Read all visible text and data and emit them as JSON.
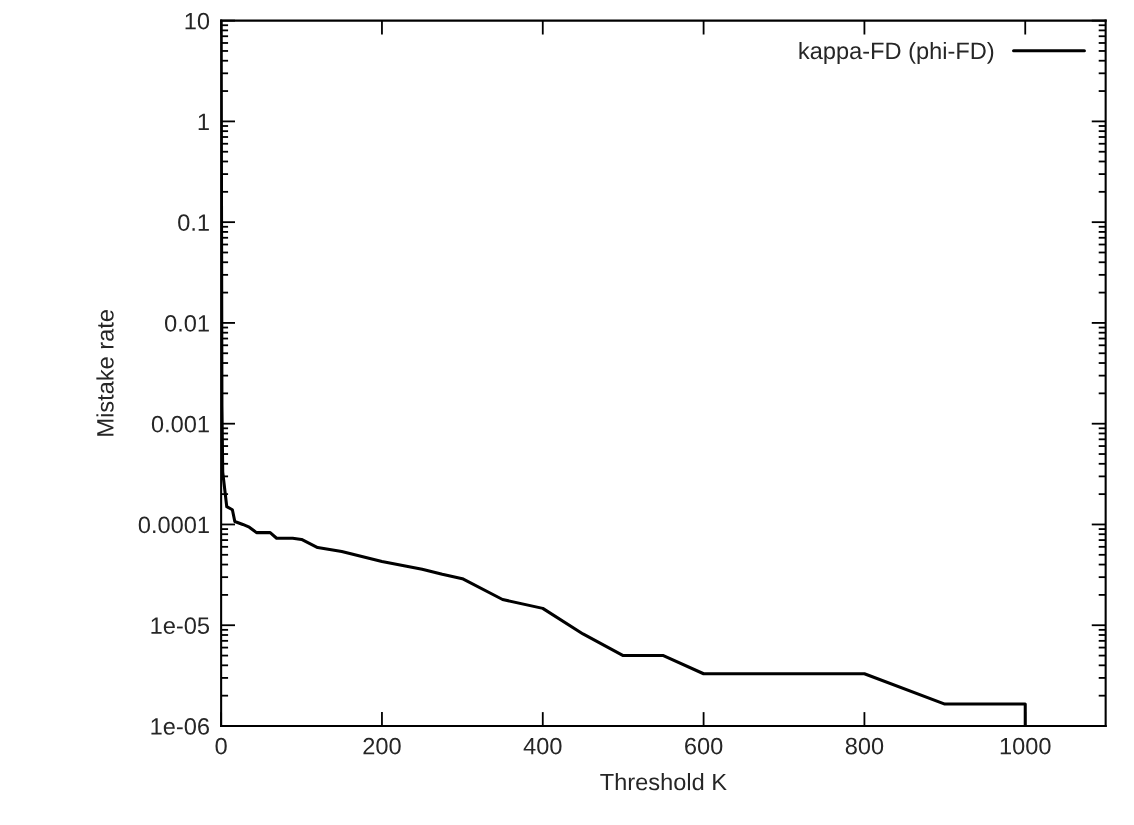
{
  "chart_data": {
    "type": "line",
    "xlabel": "Threshold K",
    "ylabel": "Mistake rate",
    "log": "y",
    "xlim": [
      0,
      1100
    ],
    "xticks": [
      0,
      200,
      400,
      600,
      800,
      1000
    ],
    "ylim": [
      1e-06,
      10
    ],
    "yticks": [
      10,
      1,
      0.1,
      0.01,
      0.001,
      0.0001,
      {
        "value": 1e-05,
        "label": "1e-05"
      },
      {
        "value": 1e-06,
        "label": "1e-06"
      }
    ],
    "legend": "top right",
    "grid": false,
    "marker": "none",
    "line_style": "solid",
    "series": [
      {
        "name": "kappa-FD (phi-FD)",
        "color": "#000000",
        "x": [
          0,
          1,
          2,
          7,
          14,
          17,
          27,
          35,
          44,
          61,
          69,
          89,
          100,
          120,
          150,
          200,
          250,
          275,
          300,
          350,
          400,
          450,
          500,
          550,
          600,
          800,
          900,
          1000,
          1000
        ],
        "values": [
          10,
          0.0015,
          0.00033,
          0.00015,
          0.00014,
          0.000107,
          0.0001,
          9.4e-05,
          8.3e-05,
          8.3e-05,
          7.3e-05,
          7.3e-05,
          7.1e-05,
          5.9e-05,
          5.4e-05,
          4.3e-05,
          3.6e-05,
          3.2e-05,
          2.9e-05,
          1.8e-05,
          1.47e-05,
          8.2e-06,
          5e-06,
          5e-06,
          3.3e-06,
          3.3e-06,
          1.65e-06,
          1.65e-06,
          1e-06
        ]
      }
    ]
  }
}
